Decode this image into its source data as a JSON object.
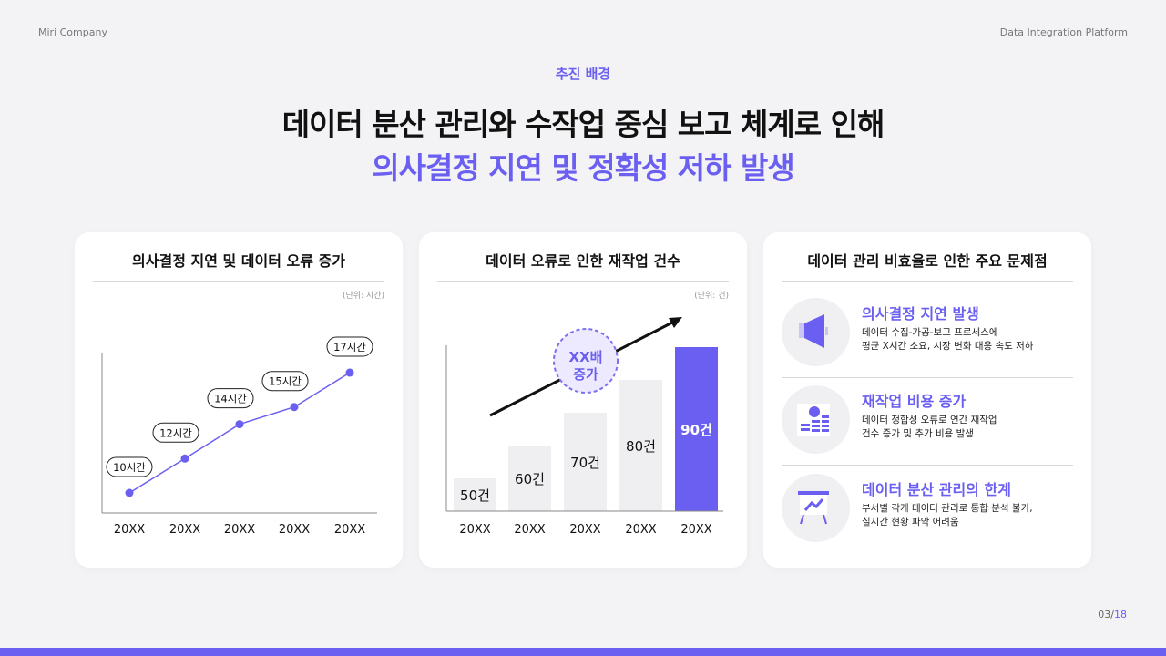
{
  "header": {
    "company": "Miri Company",
    "platform": "Data Integration Platform"
  },
  "kicker": "추진 배경",
  "title": {
    "line1": "데이터 분산 관리와 수작업 중심 보고 체계로 인해",
    "line2": "의사결정 지연 및 정확성 저하 발생"
  },
  "colors": {
    "accent": "#6a5ff0",
    "bar": "#efeef1",
    "background": "#f3f3f5"
  },
  "cards": [
    {
      "title": "의사결정 지연 및 데이터 오류 증가",
      "unit": "(단위: 시간)"
    },
    {
      "title": "데이터 오류로 인한 재작업 건수",
      "unit": "(단위: 건)",
      "badge": [
        "XX배",
        "증가"
      ]
    },
    {
      "title": "데이터 관리 비효율로 인한 주요 문제점",
      "items": [
        {
          "icon": "megaphone-icon",
          "title": "의사결정 지연 발생",
          "desc": [
            "데이터 수집-가공-보고 프로세스에",
            "평균 X시간 소요, 시장 변화 대응 속도 저하"
          ]
        },
        {
          "icon": "coins-chart-icon",
          "title": "재작업 비용 증가",
          "desc": [
            "데이터 정합성 오류로 연간 재작업",
            "건수 증가 및 추가 비용 발생"
          ]
        },
        {
          "icon": "presentation-board-icon",
          "title": "데이터 분산 관리의 한계",
          "desc": [
            "부서별 각개 데이터 관리로 통합 분석 불가,",
            "실시간 현황 파악 어려움"
          ]
        }
      ]
    }
  ],
  "chart_data": [
    {
      "type": "line",
      "categories": [
        "20XX",
        "20XX",
        "20XX",
        "20XX",
        "20XX"
      ],
      "values": [
        10,
        12,
        14,
        15,
        17
      ],
      "data_labels": [
        "10시간",
        "12시간",
        "14시간",
        "15시간",
        "17시간"
      ],
      "unit": "(단위: 시간)",
      "grid": false
    },
    {
      "type": "bar",
      "categories": [
        "20XX",
        "20XX",
        "20XX",
        "20XX",
        "20XX"
      ],
      "values": [
        50,
        60,
        70,
        80,
        90
      ],
      "data_labels": [
        "50건",
        "60건",
        "70건",
        "80건",
        "90건"
      ],
      "highlight_index": 4,
      "unit": "(단위: 건)",
      "grid": false
    }
  ],
  "pager": {
    "current": "03",
    "total": "18"
  }
}
